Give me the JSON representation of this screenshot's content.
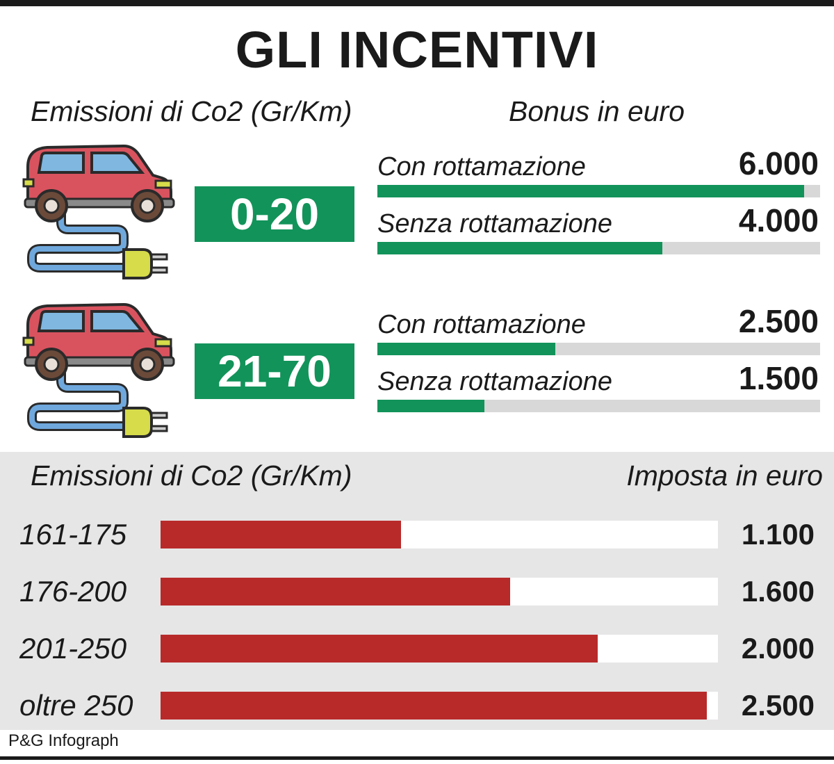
{
  "title": "GLI INCENTIVI",
  "colors": {
    "green": "#12935a",
    "red": "#b82a2a",
    "track_grey": "#d8d8d8",
    "panel_grey": "#e6e6e6"
  },
  "icons": [
    "electric-car-icon",
    "plug-icon"
  ],
  "bonus": {
    "left_header": "Emissioni di Co2 (Gr/Km)",
    "right_header": "Bonus in euro",
    "max_value": 6000,
    "groups": [
      {
        "range": "0-20",
        "rows": [
          {
            "label": "Con rottamazione",
            "value": 6000,
            "value_text": "6.000"
          },
          {
            "label": "Senza rottamazione",
            "value": 4000,
            "value_text": "4.000"
          }
        ]
      },
      {
        "range": "21-70",
        "rows": [
          {
            "label": "Con rottamazione",
            "value": 2500,
            "value_text": "2.500"
          },
          {
            "label": "Senza rottamazione",
            "value": 1500,
            "value_text": "1.500"
          }
        ]
      }
    ]
  },
  "chart_data": {
    "type": "bar",
    "orientation": "horizontal",
    "categories": [
      "161-175",
      "176-200",
      "201-250",
      "oltre 250"
    ],
    "values": [
      1100,
      1600,
      2000,
      2500
    ],
    "value_labels": [
      "1.100",
      "1.600",
      "2.000",
      "2.500"
    ],
    "xlabel": "Imposta in euro",
    "ylabel": "Emissioni di Co2 (Gr/Km)",
    "xlim": [
      0,
      2550
    ]
  },
  "credit": "P&G Infograph"
}
